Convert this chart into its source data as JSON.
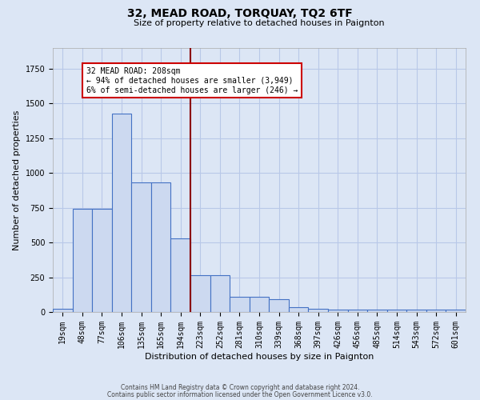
{
  "title": "32, MEAD ROAD, TORQUAY, TQ2 6TF",
  "subtitle": "Size of property relative to detached houses in Paignton",
  "xlabel": "Distribution of detached houses by size in Paignton",
  "ylabel": "Number of detached properties",
  "footnote1": "Contains HM Land Registry data © Crown copyright and database right 2024.",
  "footnote2": "Contains public sector information licensed under the Open Government Licence v3.0.",
  "bar_values": [
    25,
    740,
    740,
    1430,
    935,
    935,
    530,
    265,
    265,
    110,
    110,
    90,
    35,
    25,
    15,
    15,
    15,
    15,
    15,
    15,
    15
  ],
  "categories": [
    "19sqm",
    "48sqm",
    "77sqm",
    "106sqm",
    "135sqm",
    "165sqm",
    "194sqm",
    "223sqm",
    "252sqm",
    "281sqm",
    "310sqm",
    "339sqm",
    "368sqm",
    "397sqm",
    "426sqm",
    "456sqm",
    "485sqm",
    "514sqm",
    "543sqm",
    "572sqm",
    "601sqm"
  ],
  "bar_color": "#ccd9f0",
  "bar_edge_color": "#4472c4",
  "grid_color": "#b8c8e8",
  "background_color": "#dce6f5",
  "property_line_color": "#8b0000",
  "annotation_text": "32 MEAD ROAD: 208sqm\n← 94% of detached houses are smaller (3,949)\n6% of semi-detached houses are larger (246) →",
  "annotation_box_color": "#ffffff",
  "annotation_box_edge": "#cc0000",
  "ylim": [
    0,
    1900
  ],
  "title_fontsize": 10,
  "subtitle_fontsize": 8,
  "ylabel_fontsize": 8,
  "xlabel_fontsize": 8,
  "tick_fontsize": 7,
  "annot_fontsize": 7
}
